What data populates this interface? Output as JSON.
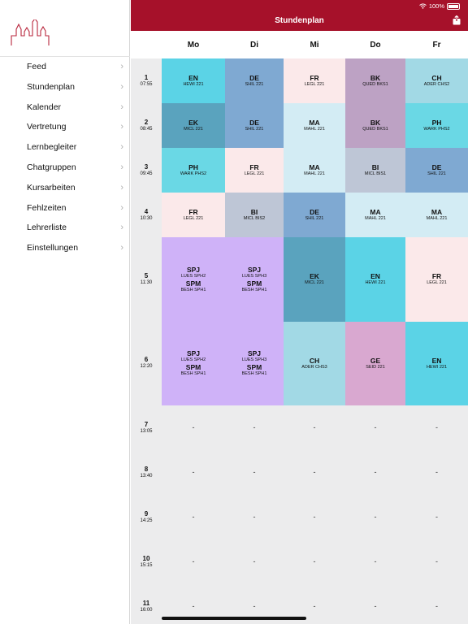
{
  "status": {
    "battery": "100%"
  },
  "header": {
    "title": "Stundenplan"
  },
  "sidebar": {
    "items": [
      {
        "label": "Feed",
        "icon": "home-icon"
      },
      {
        "label": "Stundenplan",
        "icon": "layers-icon"
      },
      {
        "label": "Kalender",
        "icon": "calendar-icon"
      },
      {
        "label": "Vertretung",
        "icon": "swap-arrows-icon"
      },
      {
        "label": "Lernbegleiter",
        "icon": "document-icon"
      },
      {
        "label": "Chatgruppen",
        "icon": "chat-bubbles-icon"
      },
      {
        "label": "Kursarbeiten",
        "icon": "open-book-icon"
      },
      {
        "label": "Fehlzeiten",
        "icon": "info-circle-icon"
      },
      {
        "label": "Lehrerliste",
        "icon": "person-icon"
      },
      {
        "label": "Einstellungen",
        "icon": "gear-icon"
      }
    ]
  },
  "days": [
    "Mo",
    "Di",
    "Mi",
    "Do",
    "Fr"
  ],
  "periods": [
    {
      "num": "1",
      "time": "07:55"
    },
    {
      "num": "2",
      "time": "08:45"
    },
    {
      "num": "3",
      "time": "09:45"
    },
    {
      "num": "4",
      "time": "10:30"
    },
    {
      "num": "5",
      "time": "11:30"
    },
    {
      "num": "6",
      "time": "12:20"
    },
    {
      "num": "7",
      "time": "13:05"
    },
    {
      "num": "8",
      "time": "13:40"
    },
    {
      "num": "9",
      "time": "14:25"
    },
    {
      "num": "10",
      "time": "15:15"
    },
    {
      "num": "11",
      "time": "16:00"
    }
  ],
  "empty_marker": "-",
  "lessons": [
    {
      "day": 0,
      "start": 0,
      "span": 1,
      "color": "#5bd3e6",
      "lines": [
        {
          "subject": "EN",
          "room": "HEWI 221"
        }
      ]
    },
    {
      "day": 1,
      "start": 0,
      "span": 1,
      "color": "#7fa9d2",
      "lines": [
        {
          "subject": "DE",
          "room": "SHIL 221"
        }
      ]
    },
    {
      "day": 2,
      "start": 0,
      "span": 1,
      "color": "#fbe9ea",
      "lines": [
        {
          "subject": "FR",
          "room": "LEGL 221"
        }
      ]
    },
    {
      "day": 3,
      "start": 0,
      "span": 1,
      "color": "#bda2c4",
      "lines": [
        {
          "subject": "BK",
          "room": "QUED BKS1"
        }
      ]
    },
    {
      "day": 4,
      "start": 0,
      "span": 1,
      "color": "#a2d9e5",
      "lines": [
        {
          "subject": "CH",
          "room": "ADER CHS2"
        }
      ]
    },
    {
      "day": 0,
      "start": 1,
      "span": 1,
      "color": "#5aa3be",
      "lines": [
        {
          "subject": "EK",
          "room": "MICL 221"
        }
      ]
    },
    {
      "day": 1,
      "start": 1,
      "span": 1,
      "color": "#7fa9d2",
      "lines": [
        {
          "subject": "DE",
          "room": "SHIL 221"
        }
      ]
    },
    {
      "day": 2,
      "start": 1,
      "span": 1,
      "color": "#d3ecf4",
      "lines": [
        {
          "subject": "MA",
          "room": "MAHL 221"
        }
      ]
    },
    {
      "day": 3,
      "start": 1,
      "span": 1,
      "color": "#bda2c4",
      "lines": [
        {
          "subject": "BK",
          "room": "QUED BKS1"
        }
      ]
    },
    {
      "day": 4,
      "start": 1,
      "span": 1,
      "color": "#6ad8e5",
      "lines": [
        {
          "subject": "PH",
          "room": "WARK PHS2"
        }
      ]
    },
    {
      "day": 0,
      "start": 2,
      "span": 1,
      "color": "#6ad8e5",
      "lines": [
        {
          "subject": "PH",
          "room": "WARK PHS2"
        }
      ]
    },
    {
      "day": 1,
      "start": 2,
      "span": 1,
      "color": "#fbe9ea",
      "lines": [
        {
          "subject": "FR",
          "room": "LEGL 221"
        }
      ]
    },
    {
      "day": 2,
      "start": 2,
      "span": 1,
      "color": "#d3ecf4",
      "lines": [
        {
          "subject": "MA",
          "room": "MAHL 221"
        }
      ]
    },
    {
      "day": 3,
      "start": 2,
      "span": 1,
      "color": "#bec6d6",
      "lines": [
        {
          "subject": "BI",
          "room": "MICL BIS1"
        }
      ]
    },
    {
      "day": 4,
      "start": 2,
      "span": 1,
      "color": "#7fa9d2",
      "lines": [
        {
          "subject": "DE",
          "room": "SHIL 221"
        }
      ]
    },
    {
      "day": 0,
      "start": 3,
      "span": 1,
      "color": "#fbe9ea",
      "lines": [
        {
          "subject": "FR",
          "room": "LEGL 221"
        }
      ]
    },
    {
      "day": 1,
      "start": 3,
      "span": 1,
      "color": "#bec6d6",
      "lines": [
        {
          "subject": "BI",
          "room": "MICL BIS2"
        }
      ]
    },
    {
      "day": 2,
      "start": 3,
      "span": 1,
      "color": "#7fa9d2",
      "lines": [
        {
          "subject": "DE",
          "room": "SHIL 221"
        }
      ]
    },
    {
      "day": 3,
      "start": 3,
      "span": 1,
      "color": "#d3ecf4",
      "lines": [
        {
          "subject": "MA",
          "room": "MAHL 221"
        }
      ]
    },
    {
      "day": 4,
      "start": 3,
      "span": 1,
      "color": "#d3ecf4",
      "lines": [
        {
          "subject": "MA",
          "room": "MAHL 221"
        }
      ]
    },
    {
      "day": 0,
      "start": 4,
      "span": 1,
      "color": "#cfb2f8",
      "lines": [
        {
          "subject": "SPJ",
          "room": "LUES SPH2"
        },
        {
          "subject": "SPM",
          "room": "BESH SPH1"
        }
      ]
    },
    {
      "day": 1,
      "start": 4,
      "span": 1,
      "color": "#cfb2f8",
      "lines": [
        {
          "subject": "SPJ",
          "room": "LUES SPH3"
        },
        {
          "subject": "SPM",
          "room": "BESH SPH1"
        }
      ]
    },
    {
      "day": 2,
      "start": 4,
      "span": 1,
      "color": "#5aa3be",
      "lines": [
        {
          "subject": "EK",
          "room": "MICL 221"
        }
      ]
    },
    {
      "day": 3,
      "start": 4,
      "span": 1,
      "color": "#5bd3e6",
      "lines": [
        {
          "subject": "EN",
          "room": "HEWI 221"
        }
      ]
    },
    {
      "day": 4,
      "start": 4,
      "span": 1,
      "color": "#fbe9ea",
      "lines": [
        {
          "subject": "FR",
          "room": "LEGL 221"
        }
      ]
    },
    {
      "day": 0,
      "start": 5,
      "span": 1,
      "color": "#cfb2f8",
      "lines": [
        {
          "subject": "SPJ",
          "room": "LUES SPH2"
        },
        {
          "subject": "SPM",
          "room": "BESH SPH1"
        }
      ]
    },
    {
      "day": 1,
      "start": 5,
      "span": 1,
      "color": "#cfb2f8",
      "lines": [
        {
          "subject": "SPJ",
          "room": "LUES SPH3"
        },
        {
          "subject": "SPM",
          "room": "BESH SPH1"
        }
      ]
    },
    {
      "day": 2,
      "start": 5,
      "span": 1,
      "color": "#a2d9e5",
      "lines": [
        {
          "subject": "CH",
          "room": "ADER CHS3"
        }
      ]
    },
    {
      "day": 3,
      "start": 5,
      "span": 1,
      "color": "#d9a8d0",
      "lines": [
        {
          "subject": "GE",
          "room": "SEID 221"
        }
      ]
    },
    {
      "day": 4,
      "start": 5,
      "span": 1,
      "color": "#5bd3e6",
      "lines": [
        {
          "subject": "EN",
          "room": "HEWI 221"
        }
      ]
    }
  ]
}
